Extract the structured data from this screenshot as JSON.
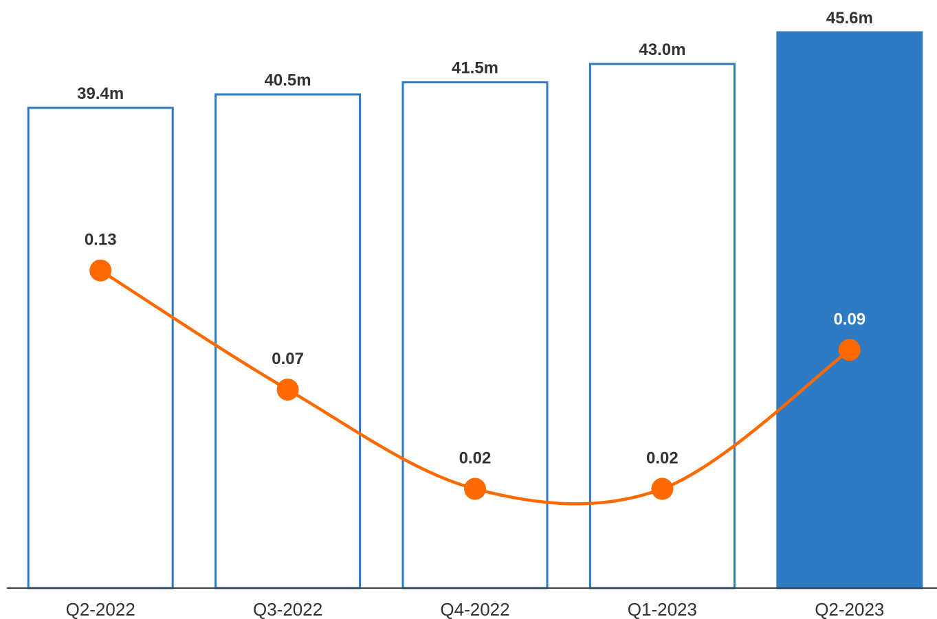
{
  "chart_data": {
    "type": "bar",
    "categories": [
      "Q2-2022",
      "Q3-2022",
      "Q4-2022",
      "Q1-2023",
      "Q2-2023"
    ],
    "series": [
      {
        "type": "bar",
        "values": [
          39.4,
          40.5,
          41.5,
          43.0,
          45.6
        ],
        "labels": [
          "39.4m",
          "40.5m",
          "41.5m",
          "43.0m",
          "45.6m"
        ],
        "style": [
          "outline",
          "outline",
          "outline",
          "outline",
          "filled"
        ]
      },
      {
        "type": "line",
        "smooth": true,
        "values": [
          0.13,
          0.07,
          0.02,
          0.02,
          0.09
        ],
        "labels": [
          "0.13",
          "0.07",
          "0.02",
          "0.02",
          "0.09"
        ]
      }
    ],
    "bar_ylim": [
      0,
      45.6
    ],
    "line_ylim": [
      -0.03,
      0.25
    ],
    "grid": false,
    "legend": "none",
    "colors": {
      "bar": "#2E7BC4",
      "line": "#FF6A00",
      "text": "#333333",
      "inner_label": "#FFFFFF",
      "axis": "#404040"
    }
  }
}
